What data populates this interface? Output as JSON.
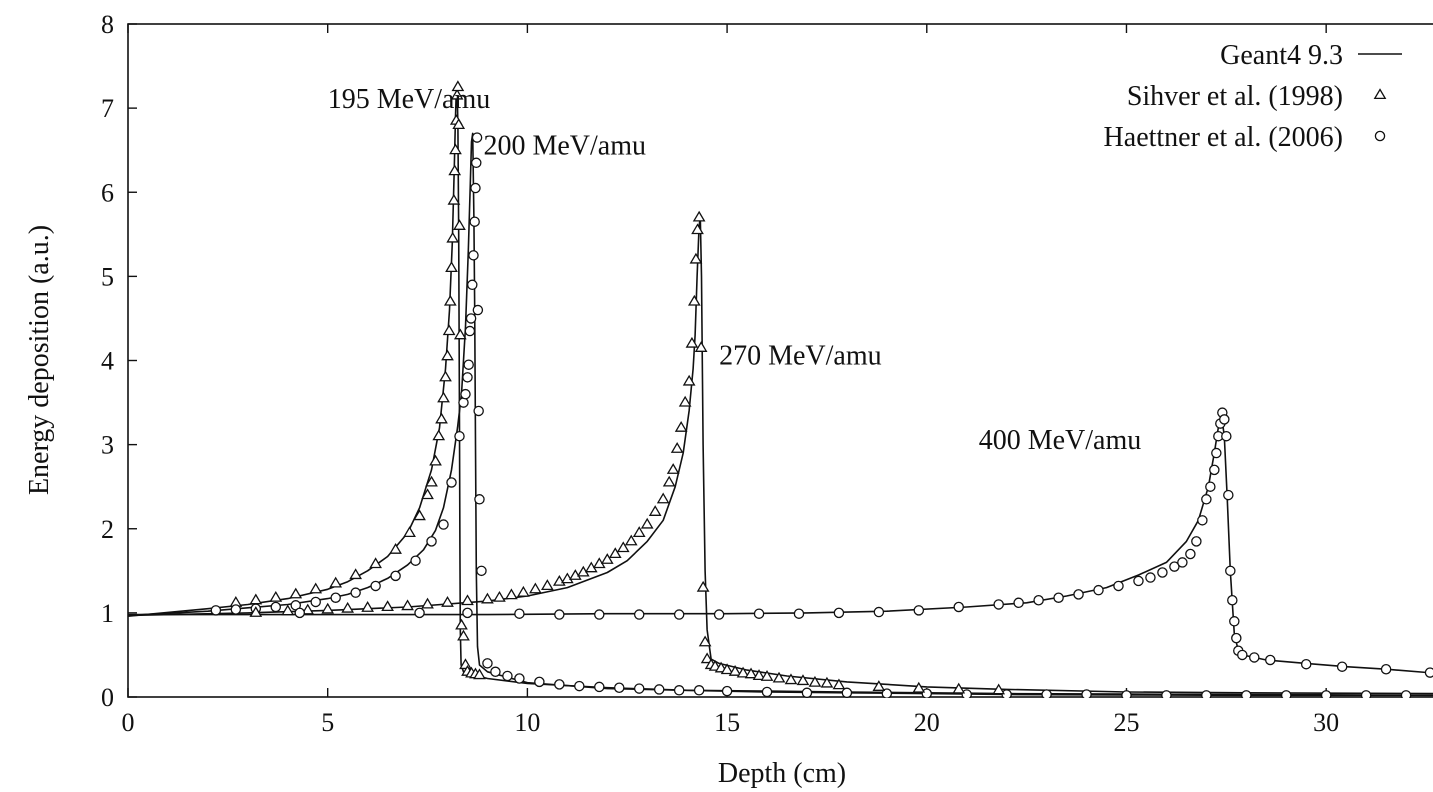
{
  "chart_data": {
    "type": "line",
    "title": "",
    "xlabel": "Depth (cm)",
    "ylabel": "Energy deposition (a.u.)",
    "xlim": [
      0,
      32.8
    ],
    "ylim": [
      0,
      8
    ],
    "xticks": [
      0,
      5,
      10,
      15,
      20,
      25,
      30
    ],
    "yticks": [
      0,
      1,
      2,
      3,
      4,
      5,
      6,
      7,
      8
    ],
    "grid": false,
    "legend_position": "top-right",
    "legend": [
      {
        "label": "Geant4 9.3",
        "style": "line"
      },
      {
        "label": "Sihver et al. (1998)",
        "style": "triangle"
      },
      {
        "label": "Haettner et al. (2006)",
        "style": "circle"
      }
    ],
    "annotations": [
      {
        "text": "195 MeV/amu",
        "x": 5.0,
        "y": 7.0
      },
      {
        "text": "200 MeV/amu",
        "x": 8.9,
        "y": 6.45
      },
      {
        "text": "270 MeV/amu",
        "x": 14.8,
        "y": 3.95
      },
      {
        "text": "400 MeV/amu",
        "x": 21.3,
        "y": 2.95
      }
    ],
    "series": [
      {
        "name": "195 MeV/amu",
        "marker": "triangle",
        "geant_curve": {
          "x": [
            0,
            2,
            3,
            4,
            5,
            5.5,
            6,
            6.5,
            7,
            7.3,
            7.6,
            7.8,
            7.95,
            8.05,
            8.12,
            8.17,
            8.2,
            8.22,
            8.24,
            8.26,
            8.28,
            8.3,
            8.31,
            8.32,
            8.34,
            8.4,
            8.6,
            9,
            10,
            12,
            14,
            16,
            18,
            20,
            22,
            25,
            28,
            32.8
          ],
          "y": [
            0.96,
            1.05,
            1.1,
            1.17,
            1.28,
            1.37,
            1.5,
            1.67,
            1.95,
            2.25,
            2.7,
            3.2,
            3.9,
            4.6,
            5.4,
            6.3,
            6.9,
            7.2,
            7.25,
            6.8,
            5.5,
            3.2,
            1.8,
            0.8,
            0.38,
            0.3,
            0.27,
            0.22,
            0.16,
            0.11,
            0.08,
            0.07,
            0.06,
            0.05,
            0.04,
            0.035,
            0.03,
            0.02
          ]
        },
        "measured": {
          "x": [
            2.7,
            3.2,
            3.7,
            4.2,
            4.7,
            5.2,
            5.7,
            6.2,
            6.7,
            7.05,
            7.3,
            7.5,
            7.6,
            7.7,
            7.78,
            7.85,
            7.9,
            7.95,
            8.0,
            8.04,
            8.07,
            8.1,
            8.13,
            8.16,
            8.18,
            8.2,
            8.22,
            8.24,
            8.26,
            8.28,
            8.3,
            8.32,
            8.35,
            8.4,
            8.45,
            8.5,
            8.6,
            8.7,
            8.8
          ],
          "y": [
            1.12,
            1.15,
            1.18,
            1.22,
            1.28,
            1.35,
            1.45,
            1.58,
            1.75,
            1.95,
            2.15,
            2.4,
            2.55,
            2.8,
            3.1,
            3.3,
            3.55,
            3.8,
            4.05,
            4.35,
            4.7,
            5.1,
            5.45,
            5.9,
            6.25,
            6.5,
            6.85,
            7.15,
            7.25,
            6.8,
            5.6,
            4.3,
            0.85,
            0.72,
            0.38,
            0.3,
            0.28,
            0.27,
            0.26
          ]
        }
      },
      {
        "name": "200 MeV/amu",
        "marker": "circle",
        "geant_curve": {
          "x": [
            0,
            2,
            3,
            4,
            5,
            5.5,
            6,
            6.5,
            7,
            7.4,
            7.7,
            7.9,
            8.1,
            8.25,
            8.35,
            8.45,
            8.52,
            8.57,
            8.6,
            8.63,
            8.66,
            8.68,
            8.7,
            8.72,
            8.75,
            8.8,
            9,
            10,
            12,
            14,
            16,
            18,
            20,
            22,
            25,
            28,
            32.8
          ],
          "y": [
            0.97,
            1.02,
            1.06,
            1.1,
            1.17,
            1.22,
            1.3,
            1.41,
            1.57,
            1.75,
            1.98,
            2.25,
            2.7,
            3.2,
            3.6,
            4.4,
            5.3,
            6.1,
            6.6,
            6.7,
            5.7,
            4.6,
            3.0,
            1.5,
            0.6,
            0.38,
            0.3,
            0.17,
            0.1,
            0.08,
            0.06,
            0.05,
            0.04,
            0.03,
            0.025,
            0.02,
            0.02
          ]
        },
        "measured": {
          "x": [
            2.2,
            2.7,
            3.2,
            3.7,
            4.2,
            4.7,
            5.2,
            5.7,
            6.2,
            6.7,
            7.2,
            7.6,
            7.9,
            8.1,
            8.3,
            8.4,
            8.45,
            8.5,
            8.53,
            8.56,
            8.59,
            8.62,
            8.65,
            8.68,
            8.7,
            8.72,
            8.74,
            8.76,
            8.78,
            8.8,
            8.85,
            9.0,
            9.2,
            9.5,
            9.8,
            10.3,
            10.8,
            11.3,
            11.8,
            12.3,
            12.8,
            13.3,
            13.8,
            14.3,
            15.0,
            16.0,
            17.0,
            18.0,
            19.0,
            20.0,
            21.0,
            22.0,
            23.0,
            24.0,
            25.0,
            26.0,
            27.0,
            28.0,
            29.0,
            30.0,
            31.0,
            32.0
          ],
          "y": [
            1.03,
            1.04,
            1.05,
            1.07,
            1.09,
            1.13,
            1.18,
            1.24,
            1.32,
            1.44,
            1.62,
            1.85,
            2.05,
            2.55,
            3.1,
            3.5,
            3.6,
            3.8,
            3.95,
            4.35,
            4.5,
            4.9,
            5.25,
            5.65,
            6.05,
            6.35,
            6.65,
            4.6,
            3.4,
            2.35,
            1.5,
            0.4,
            0.3,
            0.25,
            0.22,
            0.18,
            0.15,
            0.13,
            0.12,
            0.11,
            0.1,
            0.09,
            0.08,
            0.08,
            0.07,
            0.06,
            0.05,
            0.05,
            0.04,
            0.04,
            0.03,
            0.03,
            0.03,
            0.03,
            0.02,
            0.02,
            0.02,
            0.02,
            0.02,
            0.02,
            0.02,
            0.02
          ]
        }
      },
      {
        "name": "270 MeV/amu",
        "marker": "triangle",
        "geant_curve": {
          "x": [
            0,
            3,
            5,
            7,
            9,
            10,
            11,
            12,
            12.5,
            13,
            13.4,
            13.7,
            13.9,
            14.05,
            14.15,
            14.2,
            14.25,
            14.3,
            14.33,
            14.36,
            14.4,
            14.45,
            14.5,
            14.6,
            14.8,
            15.5,
            16.5,
            18,
            20,
            22,
            25,
            28,
            32.8
          ],
          "y": [
            0.97,
            1.0,
            1.03,
            1.07,
            1.14,
            1.2,
            1.3,
            1.48,
            1.62,
            1.85,
            2.1,
            2.5,
            2.9,
            3.4,
            3.9,
            4.3,
            5.0,
            5.6,
            5.7,
            5.0,
            3.0,
            1.5,
            0.8,
            0.45,
            0.4,
            0.32,
            0.25,
            0.18,
            0.12,
            0.09,
            0.06,
            0.05,
            0.04
          ]
        },
        "measured": {
          "x": [
            3.2,
            4.0,
            4.5,
            5.0,
            5.5,
            6.0,
            6.5,
            7.0,
            7.5,
            8.0,
            8.5,
            9.0,
            9.3,
            9.6,
            9.9,
            10.2,
            10.5,
            10.8,
            11.0,
            11.2,
            11.4,
            11.6,
            11.8,
            12.0,
            12.2,
            12.4,
            12.6,
            12.8,
            13.0,
            13.2,
            13.4,
            13.55,
            13.65,
            13.75,
            13.85,
            13.95,
            14.05,
            14.12,
            14.18,
            14.22,
            14.26,
            14.3,
            14.35,
            14.4,
            14.45,
            14.5,
            14.6,
            14.7,
            14.85,
            15.0,
            15.2,
            15.4,
            15.6,
            15.8,
            16.0,
            16.3,
            16.6,
            16.9,
            17.2,
            17.5,
            17.8,
            18.8,
            19.8,
            20.8,
            21.8
          ],
          "y": [
            1.0,
            1.02,
            1.03,
            1.04,
            1.05,
            1.06,
            1.07,
            1.08,
            1.1,
            1.12,
            1.14,
            1.16,
            1.18,
            1.21,
            1.24,
            1.28,
            1.32,
            1.37,
            1.4,
            1.44,
            1.48,
            1.53,
            1.58,
            1.63,
            1.7,
            1.77,
            1.85,
            1.95,
            2.05,
            2.2,
            2.35,
            2.55,
            2.7,
            2.95,
            3.2,
            3.5,
            3.75,
            4.2,
            4.7,
            5.2,
            5.55,
            5.7,
            4.15,
            1.3,
            0.65,
            0.45,
            0.38,
            0.36,
            0.34,
            0.32,
            0.3,
            0.28,
            0.27,
            0.25,
            0.24,
            0.22,
            0.2,
            0.19,
            0.17,
            0.16,
            0.14,
            0.12,
            0.1,
            0.09,
            0.08
          ]
        }
      },
      {
        "name": "400 MeV/amu",
        "marker": "circle",
        "geant_curve": {
          "x": [
            0,
            3,
            6,
            9,
            12,
            15,
            17,
            19,
            21,
            22.5,
            23.5,
            24.5,
            25.3,
            26,
            26.5,
            26.8,
            27.05,
            27.2,
            27.3,
            27.38,
            27.45,
            27.52,
            27.6,
            27.7,
            27.8,
            27.9,
            28.5,
            29.5,
            30.5,
            31.5,
            32.8
          ],
          "y": [
            0.98,
            0.98,
            0.98,
            0.98,
            0.99,
            0.99,
            1.0,
            1.02,
            1.07,
            1.12,
            1.2,
            1.3,
            1.45,
            1.6,
            1.85,
            2.1,
            2.5,
            2.9,
            3.2,
            3.35,
            3.1,
            2.4,
            1.5,
            0.75,
            0.55,
            0.5,
            0.44,
            0.4,
            0.36,
            0.33,
            0.28
          ]
        },
        "measured": {
          "x": [
            4.3,
            7.3,
            8.5,
            9.8,
            10.8,
            11.8,
            12.8,
            13.8,
            14.8,
            15.8,
            16.8,
            17.8,
            18.8,
            19.8,
            20.8,
            21.8,
            22.3,
            22.8,
            23.3,
            23.8,
            24.3,
            24.8,
            25.3,
            25.6,
            25.9,
            26.2,
            26.4,
            26.6,
            26.75,
            26.9,
            27.0,
            27.1,
            27.2,
            27.25,
            27.3,
            27.35,
            27.4,
            27.45,
            27.5,
            27.55,
            27.6,
            27.65,
            27.7,
            27.75,
            27.8,
            27.9,
            28.2,
            28.6,
            29.5,
            30.4,
            31.5,
            32.6
          ],
          "y": [
            1.0,
            1.0,
            1.0,
            0.99,
            0.98,
            0.98,
            0.98,
            0.98,
            0.98,
            0.99,
            0.99,
            1.0,
            1.01,
            1.03,
            1.07,
            1.1,
            1.12,
            1.15,
            1.18,
            1.22,
            1.27,
            1.32,
            1.38,
            1.42,
            1.48,
            1.55,
            1.6,
            1.7,
            1.85,
            2.1,
            2.35,
            2.5,
            2.7,
            2.9,
            3.1,
            3.25,
            3.38,
            3.3,
            3.1,
            2.4,
            1.5,
            1.15,
            0.9,
            0.7,
            0.55,
            0.5,
            0.47,
            0.44,
            0.39,
            0.36,
            0.33,
            0.29
          ]
        }
      }
    ]
  }
}
